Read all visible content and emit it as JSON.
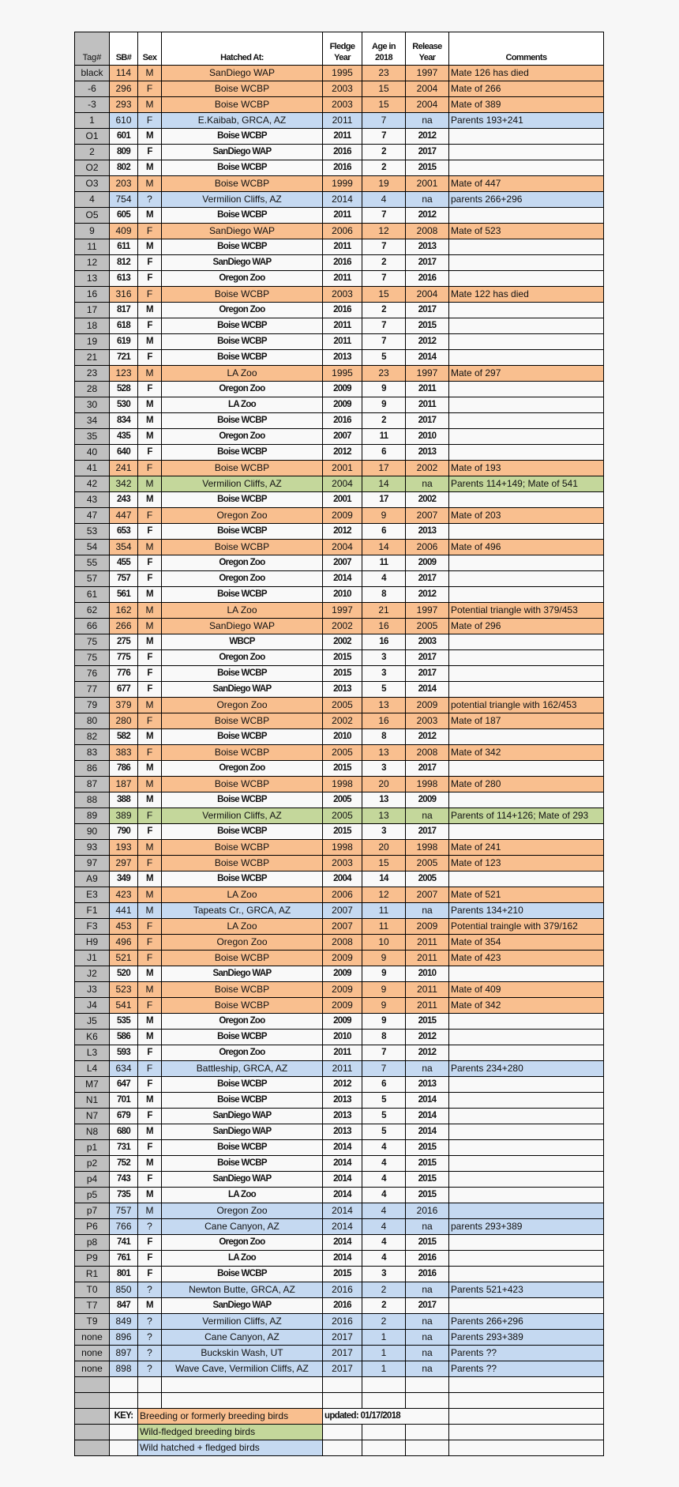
{
  "headers": {
    "tag": "Tag#",
    "sb": "SB#",
    "sex": "Sex",
    "hatched": "Hatched At:",
    "fledge": [
      "Fledge",
      "Year"
    ],
    "age": [
      "Age in",
      "2018"
    ],
    "release": [
      "Release",
      "Year"
    ],
    "comments": "Comments"
  },
  "colors": {
    "breeding": "#f9bf8f",
    "wild_fledged": "#c4d79b",
    "wild_hatched": "#c5d9f1",
    "tag_column": "#c0c0c0"
  },
  "rows": [
    [
      "black",
      "114",
      "M",
      "SanDiego WAP",
      "1995",
      "23",
      "1997",
      "Mate 126 has died",
      "breeding"
    ],
    [
      "-6",
      "296",
      "F",
      "Boise WCBP",
      "2003",
      "15",
      "2004",
      "Mate of 266",
      "breeding"
    ],
    [
      "-3",
      "293",
      "M",
      "Boise WCBP",
      "2003",
      "15",
      "2004",
      "Mate of 389",
      "breeding"
    ],
    [
      "1",
      "610",
      "F",
      "E.Kaibab, GRCA, AZ",
      "2011",
      "7",
      "na",
      "Parents 193+241",
      "wild-hatched"
    ],
    [
      "O1",
      "601",
      "M",
      "Boise WCBP",
      "2011",
      "7",
      "2012",
      "",
      "other"
    ],
    [
      "2",
      "809",
      "F",
      "SanDiego WAP",
      "2016",
      "2",
      "2017",
      "",
      "other"
    ],
    [
      "O2",
      "802",
      "M",
      "Boise WCBP",
      "2016",
      "2",
      "2015",
      "",
      "other"
    ],
    [
      "O3",
      "203",
      "M",
      "Boise WCBP",
      "1999",
      "19",
      "2001",
      "Mate of 447",
      "breeding"
    ],
    [
      "4",
      "754",
      "?",
      "Vermilion Cliffs, AZ",
      "2014",
      "4",
      "na",
      "parents 266+296",
      "wild-hatched"
    ],
    [
      "O5",
      "605",
      "M",
      "Boise WCBP",
      "2011",
      "7",
      "2012",
      "",
      "other"
    ],
    [
      "9",
      "409",
      "F",
      "SanDiego WAP",
      "2006",
      "12",
      "2008",
      "Mate of 523",
      "breeding"
    ],
    [
      "11",
      "611",
      "M",
      "Boise WCBP",
      "2011",
      "7",
      "2013",
      "",
      "other"
    ],
    [
      "12",
      "812",
      "F",
      "SanDiego WAP",
      "2016",
      "2",
      "2017",
      "",
      "other"
    ],
    [
      "13",
      "613",
      "F",
      "Oregon Zoo",
      "2011",
      "7",
      "2016",
      "",
      "other"
    ],
    [
      "16",
      "316",
      "F",
      "Boise WCBP",
      "2003",
      "15",
      "2004",
      "Mate 122 has died",
      "breeding"
    ],
    [
      "17",
      "817",
      "M",
      "Oregon Zoo",
      "2016",
      "2",
      "2017",
      "",
      "other"
    ],
    [
      "18",
      "618",
      "F",
      "Boise WCBP",
      "2011",
      "7",
      "2015",
      "",
      "other"
    ],
    [
      "19",
      "619",
      "M",
      "Boise WCBP",
      "2011",
      "7",
      "2012",
      "",
      "other"
    ],
    [
      "21",
      "721",
      "F",
      "Boise WCBP",
      "2013",
      "5",
      "2014",
      "",
      "other"
    ],
    [
      "23",
      "123",
      "M",
      "LA Zoo",
      "1995",
      "23",
      "1997",
      "Mate of 297",
      "breeding"
    ],
    [
      "28",
      "528",
      "F",
      "Oregon Zoo",
      "2009",
      "9",
      "2011",
      "",
      "other"
    ],
    [
      "30",
      "530",
      "M",
      "LA Zoo",
      "2009",
      "9",
      "2011",
      "",
      "other"
    ],
    [
      "34",
      "834",
      "M",
      "Boise WCBP",
      "2016",
      "2",
      "2017",
      "",
      "other"
    ],
    [
      "35",
      "435",
      "M",
      "Oregon Zoo",
      "2007",
      "11",
      "2010",
      "",
      "other"
    ],
    [
      "40",
      "640",
      "F",
      "Boise WCBP",
      "2012",
      "6",
      "2013",
      "",
      "other"
    ],
    [
      "41",
      "241",
      "F",
      "Boise WCBP",
      "2001",
      "17",
      "2002",
      "Mate of 193",
      "breeding"
    ],
    [
      "42",
      "342",
      "M",
      "Vermilion Cliffs, AZ",
      "2004",
      "14",
      "na",
      "Parents 114+149; Mate of 541",
      "wild-fledged"
    ],
    [
      "43",
      "243",
      "M",
      "Boise WCBP",
      "2001",
      "17",
      "2002",
      "",
      "other"
    ],
    [
      "47",
      "447",
      "F",
      "Oregon Zoo",
      "2009",
      "9",
      "2007",
      "Mate of 203",
      "breeding"
    ],
    [
      "53",
      "653",
      "F",
      "Boise WCBP",
      "2012",
      "6",
      "2013",
      "",
      "other"
    ],
    [
      "54",
      "354",
      "M",
      "Boise WCBP",
      "2004",
      "14",
      "2006",
      "Mate of 496",
      "breeding"
    ],
    [
      "55",
      "455",
      "F",
      "Oregon Zoo",
      "2007",
      "11",
      "2009",
      "",
      "other"
    ],
    [
      "57",
      "757",
      "F",
      "Oregon Zoo",
      "2014",
      "4",
      "2017",
      "",
      "other"
    ],
    [
      "61",
      "561",
      "M",
      "Boise WCBP",
      "2010",
      "8",
      "2012",
      "",
      "other"
    ],
    [
      "62",
      "162",
      "M",
      "LA Zoo",
      "1997",
      "21",
      "1997",
      "Potential triangle with 379/453",
      "breeding"
    ],
    [
      "66",
      "266",
      "M",
      "SanDiego WAP",
      "2002",
      "16",
      "2005",
      "Mate of 296",
      "breeding"
    ],
    [
      "75",
      "275",
      "M",
      "WBCP",
      "2002",
      "16",
      "2003",
      "",
      "other"
    ],
    [
      "75",
      "775",
      "F",
      "Oregon Zoo",
      "2015",
      "3",
      "2017",
      "",
      "other"
    ],
    [
      "76",
      "776",
      "F",
      "Boise WCBP",
      "2015",
      "3",
      "2017",
      "",
      "other"
    ],
    [
      "77",
      "677",
      "F",
      "SanDiego WAP",
      "2013",
      "5",
      "2014",
      "",
      "other"
    ],
    [
      "79",
      "379",
      "M",
      "Oregon Zoo",
      "2005",
      "13",
      "2009",
      "potential triangle with 162/453",
      "breeding"
    ],
    [
      "80",
      "280",
      "F",
      "Boise WCBP",
      "2002",
      "16",
      "2003",
      "Mate of 187",
      "breeding"
    ],
    [
      "82",
      "582",
      "M",
      "Boise WCBP",
      "2010",
      "8",
      "2012",
      "",
      "other"
    ],
    [
      "83",
      "383",
      "F",
      "Boise WCBP",
      "2005",
      "13",
      "2008",
      "Mate of 342",
      "breeding"
    ],
    [
      "86",
      "786",
      "M",
      "Oregon Zoo",
      "2015",
      "3",
      "2017",
      "",
      "other"
    ],
    [
      "87",
      "187",
      "M",
      "Boise WCBP",
      "1998",
      "20",
      "1998",
      "Mate of 280",
      "breeding"
    ],
    [
      "88",
      "388",
      "M",
      "Boise WCBP",
      "2005",
      "13",
      "2009",
      "",
      "other"
    ],
    [
      "89",
      "389",
      "F",
      "Vermilion Cliffs, AZ",
      "2005",
      "13",
      "na",
      "Parents of 114+126; Mate of 293",
      "wild-fledged"
    ],
    [
      "90",
      "790",
      "F",
      "Boise WCBP",
      "2015",
      "3",
      "2017",
      "",
      "other"
    ],
    [
      "93",
      "193",
      "M",
      "Boise WCBP",
      "1998",
      "20",
      "1998",
      "Mate of 241",
      "breeding"
    ],
    [
      "97",
      "297",
      "F",
      "Boise WCBP",
      "2003",
      "15",
      "2005",
      "Mate of 123",
      "breeding"
    ],
    [
      "A9",
      "349",
      "M",
      "Boise WCBP",
      "2004",
      "14",
      "2005",
      "",
      "other"
    ],
    [
      "E3",
      "423",
      "M",
      "LA Zoo",
      "2006",
      "12",
      "2007",
      "Mate of 521",
      "breeding"
    ],
    [
      "F1",
      "441",
      "M",
      "Tapeats Cr., GRCA, AZ",
      "2007",
      "11",
      "na",
      "Parents 134+210",
      "wild-hatched"
    ],
    [
      "F3",
      "453",
      "F",
      "LA Zoo",
      "2007",
      "11",
      "2009",
      "Potential traingle with 379/162",
      "breeding"
    ],
    [
      "H9",
      "496",
      "F",
      "Oregon Zoo",
      "2008",
      "10",
      "2011",
      "Mate of 354",
      "breeding"
    ],
    [
      "J1",
      "521",
      "F",
      "Boise WCBP",
      "2009",
      "9",
      "2011",
      "Mate of 423",
      "breeding"
    ],
    [
      "J2",
      "520",
      "M",
      "SanDiego WAP",
      "2009",
      "9",
      "2010",
      "",
      "other"
    ],
    [
      "J3",
      "523",
      "M",
      "Boise WCBP",
      "2009",
      "9",
      "2011",
      "Mate of 409",
      "breeding"
    ],
    [
      "J4",
      "541",
      "F",
      "Boise WCBP",
      "2009",
      "9",
      "2011",
      "Mate of 342",
      "breeding"
    ],
    [
      "J5",
      "535",
      "M",
      "Oregon Zoo",
      "2009",
      "9",
      "2015",
      "",
      "other"
    ],
    [
      "K6",
      "586",
      "M",
      "Boise WCBP",
      "2010",
      "8",
      "2012",
      "",
      "other"
    ],
    [
      "L3",
      "593",
      "F",
      "Oregon Zoo",
      "2011",
      "7",
      "2012",
      "",
      "other"
    ],
    [
      "L4",
      "634",
      "F",
      "Battleship, GRCA, AZ",
      "2011",
      "7",
      "na",
      "Parents 234+280",
      "wild-hatched"
    ],
    [
      "M7",
      "647",
      "F",
      "Boise WCBP",
      "2012",
      "6",
      "2013",
      "",
      "other"
    ],
    [
      "N1",
      "701",
      "M",
      "Boise WCBP",
      "2013",
      "5",
      "2014",
      "",
      "other"
    ],
    [
      "N7",
      "679",
      "F",
      "SanDiego WAP",
      "2013",
      "5",
      "2014",
      "",
      "other"
    ],
    [
      "N8",
      "680",
      "M",
      "SanDiego WAP",
      "2013",
      "5",
      "2014",
      "",
      "other"
    ],
    [
      "p1",
      "731",
      "F",
      "Boise WCBP",
      "2014",
      "4",
      "2015",
      "",
      "other"
    ],
    [
      "p2",
      "752",
      "M",
      "Boise WCBP",
      "2014",
      "4",
      "2015",
      "",
      "other"
    ],
    [
      "p4",
      "743",
      "F",
      "SanDiego WAP",
      "2014",
      "4",
      "2015",
      "",
      "other"
    ],
    [
      "p5",
      "735",
      "M",
      "LA Zoo",
      "2014",
      "4",
      "2015",
      "",
      "other"
    ],
    [
      "p7",
      "757",
      "M",
      "Oregon Zoo",
      "2014",
      "4",
      "2016",
      "",
      "wild-hatched"
    ],
    [
      "P6",
      "766",
      "?",
      "Cane Canyon, AZ",
      "2014",
      "4",
      "na",
      "parents 293+389",
      "wild-hatched"
    ],
    [
      "p8",
      "741",
      "F",
      "Oregon Zoo",
      "2014",
      "4",
      "2015",
      "",
      "other"
    ],
    [
      "P9",
      "761",
      "F",
      "LA Zoo",
      "2014",
      "4",
      "2016",
      "",
      "other"
    ],
    [
      "R1",
      "801",
      "F",
      "Boise WCBP",
      "2015",
      "3",
      "2016",
      "",
      "other"
    ],
    [
      "T0",
      "850",
      "?",
      "Newton Butte, GRCA, AZ",
      "2016",
      "2",
      "na",
      "Parents 521+423",
      "wild-hatched"
    ],
    [
      "T7",
      "847",
      "M",
      "SanDiego WAP",
      "2016",
      "2",
      "2017",
      "",
      "other"
    ],
    [
      "T9",
      "849",
      "?",
      "Vermilion Cliffs, AZ",
      "2016",
      "2",
      "na",
      "Parents 266+296",
      "wild-hatched"
    ],
    [
      "none",
      "896",
      "?",
      "Cane Canyon, AZ",
      "2017",
      "1",
      "na",
      "Parents 293+389",
      "wild-hatched"
    ],
    [
      "none",
      "897",
      "?",
      "Buckskin Wash, UT",
      "2017",
      "1",
      "na",
      "Parents ??",
      "wild-hatched"
    ],
    [
      "none",
      "898",
      "?",
      "Wave Cave, Vermilion Cliffs, AZ",
      "2017",
      "1",
      "na",
      "Parents ??",
      "wild-hatched"
    ]
  ],
  "key": {
    "label": "KEY:",
    "breeding": "Breeding or formerly breeding birds",
    "wild_fledged": "Wild-fledged breeding birds",
    "wild_hatched": "Wild hatched + fledged birds",
    "updated": "updated: 01/17/2018"
  }
}
